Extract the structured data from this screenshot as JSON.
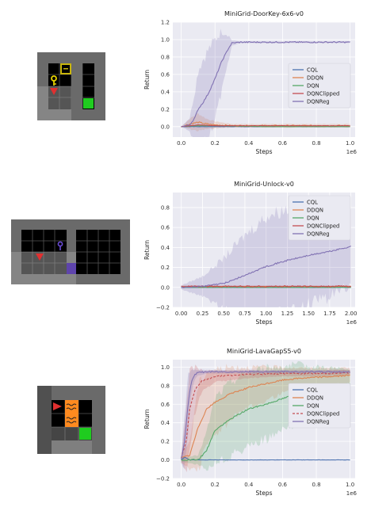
{
  "accent_colors": {
    "CQL": "#4c72b0",
    "DDQN": "#dd8452",
    "DQN": "#55a868",
    "DQNClipped": "#c44e52",
    "DQNReg": "#8172b3",
    "plot_bg": "#eaeaf2",
    "grid": "#ffffff"
  },
  "environments": [
    {
      "thumbnail_icons": [
        "key-icon",
        "door-icon",
        "agent-triangle-icon",
        "goal-square-icon"
      ]
    },
    {
      "thumbnail_icons": [
        "key-icon",
        "agent-triangle-icon",
        "door-icon"
      ]
    },
    {
      "thumbnail_icons": [
        "agent-triangle-icon",
        "lava-icon",
        "goal-square-icon"
      ]
    }
  ],
  "chart_data": [
    {
      "type": "line",
      "title": "MiniGrid-DoorKey-6x6-v0",
      "xlabel": "Steps",
      "ylabel": "Return",
      "x_offset_label": "1e6",
      "xlim": [
        -0.05,
        1.03
      ],
      "ylim": [
        -0.12,
        1.2
      ],
      "xticks": [
        0.0,
        0.2,
        0.4,
        0.6,
        0.8,
        1.0
      ],
      "xtick_labels": [
        "0.0",
        "0.2",
        "0.4",
        "0.6",
        "0.8",
        "1.0"
      ],
      "yticks": [
        0.0,
        0.2,
        0.4,
        0.6,
        0.8,
        1.0,
        1.2
      ],
      "ytick_labels": [
        "0.0",
        "0.2",
        "0.4",
        "0.6",
        "0.8",
        "1.0",
        "1.2"
      ],
      "legend_position": "center-right",
      "grid": true,
      "series": [
        {
          "name": "CQL",
          "color": "#4c72b0",
          "dash": "solid",
          "x": [
            0.0,
            0.5,
            1.0
          ],
          "y": [
            0.0,
            0.0,
            0.0
          ]
        },
        {
          "name": "DDQN",
          "color": "#dd8452",
          "dash": "solid",
          "x": [
            0.0,
            0.05,
            0.1,
            0.15,
            0.2,
            0.3,
            0.5,
            1.0
          ],
          "y": [
            0.0,
            0.03,
            0.05,
            0.03,
            0.02,
            0.01,
            0.01,
            0.01
          ],
          "band": [
            0.0,
            0.06,
            0.1,
            0.06,
            0.04,
            0.02,
            0.02,
            0.02
          ]
        },
        {
          "name": "DQN",
          "color": "#55a868",
          "dash": "solid",
          "x": [
            0.0,
            0.1,
            0.2,
            0.5,
            1.0
          ],
          "y": [
            0.0,
            0.01,
            0.01,
            0.0,
            0.0
          ]
        },
        {
          "name": "DQNClipped",
          "color": "#c44e52",
          "dash": "solid",
          "x": [
            0.0,
            0.1,
            0.2,
            0.5,
            1.0
          ],
          "y": [
            0.0,
            0.02,
            0.01,
            0.01,
            0.01
          ]
        },
        {
          "name": "DQNReg",
          "color": "#8172b3",
          "dash": "solid",
          "x": [
            0.0,
            0.05,
            0.08,
            0.1,
            0.13,
            0.16,
            0.2,
            0.24,
            0.28,
            0.3,
            0.35,
            0.5,
            0.75,
            1.0
          ],
          "y": [
            0.0,
            0.02,
            0.1,
            0.2,
            0.28,
            0.38,
            0.55,
            0.75,
            0.9,
            0.96,
            0.97,
            0.97,
            0.97,
            0.97
          ],
          "band": [
            0.0,
            0.08,
            0.3,
            0.45,
            0.5,
            0.5,
            0.45,
            0.35,
            0.15,
            0.03,
            0.01,
            0.01,
            0.01,
            0.01
          ]
        }
      ]
    },
    {
      "type": "line",
      "title": "MiniGrid-Unlock-v0",
      "xlabel": "Steps",
      "ylabel": "Return",
      "x_offset_label": "1e6",
      "xlim": [
        -0.1,
        2.05
      ],
      "ylim": [
        -0.2,
        0.95
      ],
      "xticks": [
        0.0,
        0.25,
        0.5,
        0.75,
        1.0,
        1.25,
        1.5,
        1.75,
        2.0
      ],
      "xtick_labels": [
        "0.00",
        "0.25",
        "0.50",
        "0.75",
        "1.00",
        "1.25",
        "1.50",
        "1.75",
        "2.00"
      ],
      "yticks": [
        -0.2,
        0.0,
        0.2,
        0.4,
        0.6,
        0.8
      ],
      "ytick_labels": [
        "−0.2",
        "0.0",
        "0.2",
        "0.4",
        "0.6",
        "0.8"
      ],
      "legend_position": "top-right",
      "grid": true,
      "series": [
        {
          "name": "CQL",
          "color": "#4c72b0",
          "dash": "solid",
          "x": [
            0.0,
            1.0,
            2.0
          ],
          "y": [
            0.0,
            0.0,
            0.0
          ]
        },
        {
          "name": "DDQN",
          "color": "#dd8452",
          "dash": "solid",
          "x": [
            0.0,
            1.0,
            2.0
          ],
          "y": [
            0.01,
            0.01,
            0.01
          ]
        },
        {
          "name": "DQN",
          "color": "#55a868",
          "dash": "solid",
          "x": [
            0.0,
            1.0,
            2.0
          ],
          "y": [
            0.0,
            0.0,
            0.0
          ]
        },
        {
          "name": "DQNClipped",
          "color": "#c44e52",
          "dash": "solid",
          "x": [
            0.0,
            0.5,
            1.0,
            1.5,
            2.0
          ],
          "y": [
            0.01,
            0.01,
            0.01,
            0.01,
            0.01
          ],
          "band": [
            0.01,
            0.01,
            0.01,
            0.01,
            0.01
          ]
        },
        {
          "name": "DQNReg",
          "color": "#8172b3",
          "dash": "solid",
          "x": [
            0.0,
            0.25,
            0.5,
            0.75,
            1.0,
            1.25,
            1.5,
            1.75,
            2.0
          ],
          "y": [
            0.0,
            0.01,
            0.04,
            0.12,
            0.21,
            0.27,
            0.32,
            0.36,
            0.41
          ],
          "band": [
            0.02,
            0.1,
            0.25,
            0.4,
            0.5,
            0.52,
            0.5,
            0.45,
            0.38
          ]
        }
      ]
    },
    {
      "type": "line",
      "title": "MiniGrid-LavaGapS5-v0",
      "xlabel": "Steps",
      "ylabel": "Return",
      "x_offset_label": "1e6",
      "xlim": [
        -0.05,
        1.03
      ],
      "ylim": [
        -0.2,
        1.08
      ],
      "xticks": [
        0.0,
        0.2,
        0.4,
        0.6,
        0.8,
        1.0
      ],
      "xtick_labels": [
        "0.0",
        "0.2",
        "0.4",
        "0.6",
        "0.8",
        "1.0"
      ],
      "yticks": [
        -0.2,
        0.0,
        0.2,
        0.4,
        0.6,
        0.8,
        1.0
      ],
      "ytick_labels": [
        "−0.2",
        "0.0",
        "0.2",
        "0.4",
        "0.6",
        "0.8",
        "1.0"
      ],
      "legend_position": "center-right",
      "grid": true,
      "series": [
        {
          "name": "CQL",
          "color": "#4c72b0",
          "dash": "solid",
          "x": [
            0.0,
            0.02,
            0.05,
            0.5,
            1.0
          ],
          "y": [
            0.0,
            0.03,
            0.0,
            0.0,
            0.0
          ]
        },
        {
          "name": "DDQN",
          "color": "#dd8452",
          "dash": "solid",
          "x": [
            0.0,
            0.05,
            0.1,
            0.15,
            0.2,
            0.3,
            0.4,
            0.5,
            0.6,
            0.7,
            0.8,
            0.9,
            1.0
          ],
          "y": [
            0.02,
            0.05,
            0.35,
            0.55,
            0.62,
            0.72,
            0.78,
            0.82,
            0.86,
            0.88,
            0.89,
            0.9,
            0.91
          ],
          "band": [
            0.05,
            0.15,
            0.45,
            0.4,
            0.35,
            0.28,
            0.22,
            0.18,
            0.14,
            0.11,
            0.1,
            0.09,
            0.08
          ]
        },
        {
          "name": "DQN",
          "color": "#55a868",
          "dash": "solid",
          "x": [
            0.0,
            0.1,
            0.15,
            0.2,
            0.3,
            0.4,
            0.5,
            0.6,
            0.7,
            0.8,
            0.9,
            1.0
          ],
          "y": [
            0.0,
            0.0,
            0.1,
            0.32,
            0.45,
            0.55,
            0.6,
            0.66,
            0.72,
            0.75,
            0.79,
            0.82
          ],
          "band": [
            0.02,
            0.05,
            0.2,
            0.35,
            0.4,
            0.4,
            0.38,
            0.35,
            0.3,
            0.25,
            0.2,
            0.15
          ]
        },
        {
          "name": "DQNClipped",
          "color": "#c44e52",
          "dash": "dashed",
          "x": [
            0.0,
            0.03,
            0.05,
            0.08,
            0.12,
            0.2,
            0.4,
            0.6,
            0.8,
            1.0
          ],
          "y": [
            0.02,
            0.2,
            0.55,
            0.75,
            0.85,
            0.9,
            0.92,
            0.93,
            0.93,
            0.94
          ],
          "band": [
            0.04,
            0.35,
            0.4,
            0.25,
            0.12,
            0.06,
            0.04,
            0.03,
            0.03,
            0.03
          ]
        },
        {
          "name": "DQNReg",
          "color": "#8172b3",
          "dash": "solid",
          "x": [
            0.0,
            0.02,
            0.04,
            0.06,
            0.08,
            0.1,
            0.15,
            0.3,
            0.6,
            1.0
          ],
          "y": [
            0.0,
            0.2,
            0.6,
            0.85,
            0.92,
            0.94,
            0.95,
            0.95,
            0.95,
            0.95
          ],
          "band": [
            0.03,
            0.3,
            0.3,
            0.12,
            0.05,
            0.03,
            0.02,
            0.02,
            0.02,
            0.02
          ]
        }
      ]
    }
  ]
}
